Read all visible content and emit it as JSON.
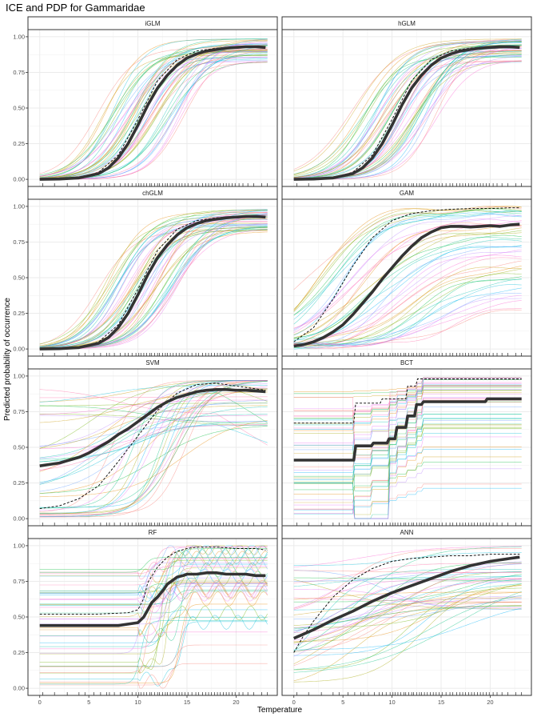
{
  "chart_data": {
    "type": "line",
    "title": "ICE and PDP for Gammaridae",
    "xlabel": "Temperature",
    "ylabel": "Predicted probability of occurrence",
    "xlim": [
      -1.2,
      24.2
    ],
    "ylim": [
      -0.05,
      1.05
    ],
    "x_ticks": [
      "0",
      "5",
      "10",
      "15",
      "20"
    ],
    "y_ticks": [
      "0.00",
      "0.25",
      "0.50",
      "0.75",
      "1.00"
    ],
    "grid": true,
    "ice_colors": [
      "#f8766d",
      "#e58700",
      "#c99800",
      "#a3a500",
      "#6bb100",
      "#00ba38",
      "#00bf7d",
      "#00c0af",
      "#00bcd8",
      "#00b0f6",
      "#619cff",
      "#b983ff",
      "#e76bf3",
      "#fd61d1",
      "#ff67a4"
    ],
    "rug": [
      0.3,
      1.5,
      2.8,
      4.0,
      4.6,
      5.5,
      6.2,
      6.8,
      7.1,
      7.6,
      8.2,
      8.7,
      9.0,
      9.4,
      9.8,
      10.1,
      10.3,
      10.6,
      10.9,
      11.2,
      11.4,
      11.7,
      12.0,
      12.2,
      12.5,
      12.8,
      13.0,
      13.3,
      13.6,
      13.9,
      14.2,
      14.5,
      14.8,
      15.1,
      15.5,
      15.9,
      16.2,
      16.6,
      16.9,
      17.2,
      17.5,
      17.8,
      18.1,
      18.4,
      18.7,
      19.0,
      19.3,
      19.6,
      19.9,
      20.3,
      20.7,
      21.2,
      21.8,
      22.6,
      23.2
    ],
    "panels": [
      {
        "name": "iGLM",
        "pdp_x": [
          0,
          2,
          4,
          6,
          7,
          8,
          9,
          10,
          11,
          12,
          13,
          14,
          15,
          16,
          17,
          18,
          19,
          20,
          21,
          22,
          23
        ],
        "pdp_y": [
          0.0,
          0.002,
          0.01,
          0.04,
          0.08,
          0.15,
          0.25,
          0.38,
          0.52,
          0.64,
          0.73,
          0.8,
          0.85,
          0.88,
          0.9,
          0.91,
          0.92,
          0.925,
          0.93,
          0.93,
          0.925
        ],
        "dashed_x": [
          0,
          4,
          6,
          8,
          10,
          12,
          14,
          16,
          18,
          20,
          22,
          23
        ],
        "dashed_y": [
          0.0,
          0.01,
          0.05,
          0.17,
          0.42,
          0.69,
          0.84,
          0.9,
          0.92,
          0.93,
          0.93,
          0.93
        ]
      },
      {
        "name": "hGLM",
        "pdp_x": [
          0,
          2,
          4,
          6,
          7,
          8,
          9,
          10,
          11,
          12,
          13,
          14,
          15,
          16,
          17,
          18,
          19,
          20,
          21,
          22,
          23
        ],
        "pdp_y": [
          0.0,
          0.002,
          0.01,
          0.04,
          0.08,
          0.15,
          0.25,
          0.38,
          0.52,
          0.64,
          0.73,
          0.8,
          0.85,
          0.88,
          0.9,
          0.91,
          0.92,
          0.925,
          0.93,
          0.93,
          0.925
        ],
        "dashed_x": [
          0,
          4,
          6,
          8,
          10,
          12,
          14,
          16,
          18,
          20,
          22,
          23
        ],
        "dashed_y": [
          0.0,
          0.01,
          0.05,
          0.17,
          0.42,
          0.69,
          0.84,
          0.9,
          0.92,
          0.93,
          0.93,
          0.93
        ]
      },
      {
        "name": "chGLM",
        "pdp_x": [
          0,
          2,
          4,
          6,
          7,
          8,
          9,
          10,
          11,
          12,
          13,
          14,
          15,
          16,
          17,
          18,
          19,
          20,
          21,
          22,
          23
        ],
        "pdp_y": [
          0.0,
          0.002,
          0.01,
          0.04,
          0.08,
          0.15,
          0.25,
          0.38,
          0.52,
          0.64,
          0.73,
          0.8,
          0.85,
          0.88,
          0.9,
          0.91,
          0.92,
          0.925,
          0.93,
          0.93,
          0.925
        ],
        "dashed_x": [
          0,
          4,
          6,
          8,
          10,
          12,
          14,
          16,
          18,
          20,
          22,
          23
        ],
        "dashed_y": [
          0.0,
          0.01,
          0.05,
          0.17,
          0.42,
          0.69,
          0.84,
          0.9,
          0.92,
          0.93,
          0.93,
          0.93
        ]
      },
      {
        "name": "GAM",
        "pdp_x": [
          0,
          1,
          2,
          3,
          4,
          5,
          6,
          7,
          8,
          9,
          10,
          11,
          12,
          13,
          14,
          15,
          16,
          17,
          18,
          19,
          20,
          21,
          22,
          23
        ],
        "pdp_y": [
          0.02,
          0.03,
          0.05,
          0.08,
          0.12,
          0.17,
          0.24,
          0.32,
          0.4,
          0.49,
          0.57,
          0.65,
          0.72,
          0.78,
          0.82,
          0.85,
          0.86,
          0.86,
          0.855,
          0.86,
          0.865,
          0.86,
          0.87,
          0.875
        ],
        "dashed_x": [
          0,
          2,
          4,
          6,
          8,
          10,
          12,
          14,
          16,
          18,
          20,
          22,
          23
        ],
        "dashed_y": [
          0.05,
          0.15,
          0.35,
          0.58,
          0.78,
          0.9,
          0.95,
          0.97,
          0.98,
          0.985,
          0.985,
          0.99,
          0.99
        ]
      },
      {
        "name": "SVM",
        "pdp_x": [
          0,
          1,
          2,
          3,
          4,
          5,
          6,
          7,
          8,
          9,
          10,
          11,
          12,
          13,
          14,
          15,
          16,
          17,
          18,
          19,
          20,
          21,
          22,
          23
        ],
        "pdp_y": [
          0.37,
          0.38,
          0.39,
          0.41,
          0.43,
          0.46,
          0.5,
          0.54,
          0.59,
          0.63,
          0.68,
          0.73,
          0.78,
          0.82,
          0.85,
          0.87,
          0.89,
          0.9,
          0.905,
          0.905,
          0.9,
          0.9,
          0.895,
          0.89
        ],
        "dashed_x": [
          0,
          2,
          4,
          6,
          8,
          10,
          12,
          14,
          16,
          18,
          20,
          22,
          23
        ],
        "dashed_y": [
          0.07,
          0.09,
          0.14,
          0.23,
          0.4,
          0.58,
          0.76,
          0.88,
          0.94,
          0.95,
          0.93,
          0.91,
          0.9
        ]
      },
      {
        "name": "BCT",
        "pdp_x": [
          0,
          6.1,
          6.3,
          7.9,
          8.1,
          9.5,
          9.7,
          10.3,
          10.5,
          11.4,
          11.6,
          12.3,
          12.5,
          13.0,
          13.2,
          19.5,
          19.7,
          23.2
        ],
        "pdp_y": [
          0.41,
          0.41,
          0.51,
          0.51,
          0.53,
          0.53,
          0.56,
          0.56,
          0.64,
          0.64,
          0.72,
          0.72,
          0.8,
          0.8,
          0.82,
          0.82,
          0.84,
          0.84
        ],
        "dashed_x": [
          0,
          6.1,
          6.3,
          8.8,
          9.0,
          11.4,
          11.6,
          12.4,
          12.6,
          23.2
        ],
        "dashed_y": [
          0.67,
          0.67,
          0.81,
          0.81,
          0.84,
          0.84,
          0.93,
          0.93,
          0.98,
          0.98
        ]
      },
      {
        "name": "RF",
        "pdp_x": [
          0,
          3,
          6,
          8,
          9,
          10,
          10.6,
          11,
          11.4,
          12,
          12.6,
          13,
          13.6,
          14,
          14.6,
          15,
          16,
          17,
          18,
          19,
          20,
          21,
          22,
          23
        ],
        "pdp_y": [
          0.44,
          0.44,
          0.44,
          0.44,
          0.45,
          0.46,
          0.5,
          0.55,
          0.6,
          0.64,
          0.69,
          0.73,
          0.76,
          0.78,
          0.79,
          0.8,
          0.8,
          0.81,
          0.81,
          0.8,
          0.8,
          0.8,
          0.79,
          0.79
        ],
        "dashed_x": [
          0,
          6,
          9,
          10,
          10.6,
          11,
          12,
          13,
          14,
          15,
          16,
          17,
          18,
          20,
          22,
          23
        ],
        "dashed_y": [
          0.52,
          0.52,
          0.53,
          0.55,
          0.63,
          0.74,
          0.85,
          0.92,
          0.96,
          0.98,
          0.99,
          0.99,
          0.99,
          0.98,
          0.98,
          0.97
        ]
      },
      {
        "name": "ANN",
        "pdp_x": [
          0,
          2,
          4,
          6,
          8,
          10,
          12,
          14,
          16,
          18,
          20,
          22,
          23
        ],
        "pdp_y": [
          0.35,
          0.41,
          0.48,
          0.54,
          0.61,
          0.67,
          0.72,
          0.77,
          0.82,
          0.86,
          0.89,
          0.91,
          0.92
        ],
        "dashed_x": [
          0,
          1,
          2,
          4,
          6,
          8,
          10,
          12,
          14,
          16,
          18,
          20,
          22,
          23
        ],
        "dashed_y": [
          0.25,
          0.37,
          0.47,
          0.64,
          0.76,
          0.84,
          0.89,
          0.91,
          0.92,
          0.93,
          0.93,
          0.94,
          0.94,
          0.94
        ]
      }
    ]
  }
}
